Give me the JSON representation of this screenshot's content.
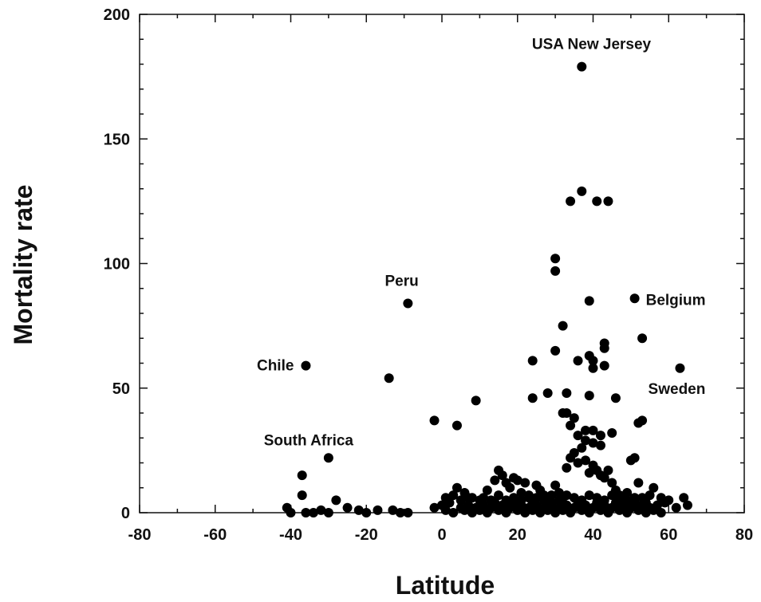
{
  "chart_data": {
    "type": "scatter",
    "title": "",
    "xlabel": "Latitude",
    "ylabel": "Mortality rate",
    "xlim": [
      -80,
      80
    ],
    "ylim": [
      0,
      200
    ],
    "xticks": [
      -80,
      -60,
      -40,
      -20,
      0,
      20,
      40,
      60,
      80
    ],
    "yticks": [
      0,
      50,
      100,
      150,
      200
    ],
    "grid": false,
    "legend": "none",
    "point_color": "#000000",
    "annotations": [
      {
        "text": "USA New Jersey",
        "x": 40,
        "y": 179
      },
      {
        "text": "Peru",
        "x": -10,
        "y": 84
      },
      {
        "text": "Belgium",
        "x": 51,
        "y": 86
      },
      {
        "text": "Chile",
        "x": -36,
        "y": 59
      },
      {
        "text": "Sweden",
        "x": 63,
        "y": 58
      },
      {
        "text": "South Africa",
        "x": -30,
        "y": 22
      }
    ],
    "points": [
      [
        37,
        179
      ],
      [
        37,
        129
      ],
      [
        34,
        125
      ],
      [
        41,
        125
      ],
      [
        44,
        125
      ],
      [
        30,
        102
      ],
      [
        30,
        97
      ],
      [
        39,
        85
      ],
      [
        51,
        86
      ],
      [
        -9,
        84
      ],
      [
        32,
        75
      ],
      [
        53,
        70
      ],
      [
        43,
        68
      ],
      [
        43,
        66
      ],
      [
        39,
        63
      ],
      [
        40,
        61
      ],
      [
        36,
        61
      ],
      [
        24,
        61
      ],
      [
        30,
        65
      ],
      [
        43,
        59
      ],
      [
        40,
        58
      ],
      [
        -36,
        59
      ],
      [
        -14,
        54
      ],
      [
        63,
        58
      ],
      [
        28,
        48
      ],
      [
        33,
        48
      ],
      [
        39,
        47
      ],
      [
        46,
        46
      ],
      [
        24,
        46
      ],
      [
        9,
        45
      ],
      [
        -2,
        37
      ],
      [
        4,
        35
      ],
      [
        33,
        40
      ],
      [
        32,
        40
      ],
      [
        35,
        38
      ],
      [
        52,
        36
      ],
      [
        53,
        37
      ],
      [
        34,
        35
      ],
      [
        38,
        33
      ],
      [
        40,
        33
      ],
      [
        36,
        31
      ],
      [
        42,
        31
      ],
      [
        45,
        32
      ],
      [
        38,
        29
      ],
      [
        40,
        28
      ],
      [
        42,
        27
      ],
      [
        -30,
        22
      ],
      [
        -37,
        15
      ],
      [
        -37,
        7
      ],
      [
        -41,
        2
      ],
      [
        -40,
        0
      ],
      [
        -36,
        0
      ],
      [
        -34,
        0
      ],
      [
        -32,
        1
      ],
      [
        -30,
        0
      ],
      [
        -28,
        5
      ],
      [
        -25,
        2
      ],
      [
        -22,
        1
      ],
      [
        -20,
        0
      ],
      [
        -17,
        1
      ],
      [
        -13,
        1
      ],
      [
        -11,
        0
      ],
      [
        -9,
        0
      ],
      [
        4,
        10
      ],
      [
        6,
        8
      ],
      [
        8,
        6
      ],
      [
        10,
        5
      ],
      [
        12,
        9
      ],
      [
        14,
        13
      ],
      [
        15,
        17
      ],
      [
        16,
        15
      ],
      [
        17,
        12
      ],
      [
        18,
        10
      ],
      [
        19,
        14
      ],
      [
        20,
        13
      ],
      [
        21,
        8
      ],
      [
        22,
        12
      ],
      [
        23,
        6
      ],
      [
        24,
        4
      ],
      [
        25,
        11
      ],
      [
        26,
        9
      ],
      [
        27,
        7
      ],
      [
        28,
        5
      ],
      [
        29,
        3
      ],
      [
        30,
        11
      ],
      [
        31,
        8
      ],
      [
        32,
        6
      ],
      [
        33,
        18
      ],
      [
        34,
        22
      ],
      [
        35,
        24
      ],
      [
        36,
        20
      ],
      [
        37,
        26
      ],
      [
        38,
        21
      ],
      [
        39,
        16
      ],
      [
        40,
        19
      ],
      [
        41,
        17
      ],
      [
        42,
        15
      ],
      [
        43,
        14
      ],
      [
        44,
        17
      ],
      [
        45,
        12
      ],
      [
        46,
        9
      ],
      [
        47,
        7
      ],
      [
        48,
        5
      ],
      [
        49,
        8
      ],
      [
        50,
        21
      ],
      [
        51,
        22
      ],
      [
        52,
        12
      ],
      [
        53,
        6
      ],
      [
        54,
        4
      ],
      [
        55,
        7
      ],
      [
        56,
        10
      ],
      [
        57,
        3
      ],
      [
        58,
        6
      ],
      [
        59,
        4
      ],
      [
        60,
        5
      ],
      [
        62,
        2
      ],
      [
        64,
        6
      ],
      [
        65,
        3
      ],
      [
        -2,
        2
      ],
      [
        0,
        3
      ],
      [
        1,
        1
      ],
      [
        2,
        4
      ],
      [
        3,
        0
      ],
      [
        5,
        2
      ],
      [
        6,
        1
      ],
      [
        7,
        3
      ],
      [
        8,
        0
      ],
      [
        9,
        2
      ],
      [
        10,
        1
      ],
      [
        11,
        3
      ],
      [
        12,
        0
      ],
      [
        13,
        2
      ],
      [
        14,
        4
      ],
      [
        15,
        1
      ],
      [
        16,
        3
      ],
      [
        17,
        0
      ],
      [
        18,
        2
      ],
      [
        19,
        4
      ],
      [
        20,
        1
      ],
      [
        21,
        3
      ],
      [
        22,
        0
      ],
      [
        23,
        2
      ],
      [
        24,
        1
      ],
      [
        25,
        3
      ],
      [
        26,
        0
      ],
      [
        27,
        2
      ],
      [
        28,
        1
      ],
      [
        29,
        4
      ],
      [
        30,
        0
      ],
      [
        31,
        2
      ],
      [
        32,
        1
      ],
      [
        33,
        3
      ],
      [
        34,
        0
      ],
      [
        35,
        2
      ],
      [
        36,
        4
      ],
      [
        37,
        1
      ],
      [
        38,
        3
      ],
      [
        39,
        0
      ],
      [
        40,
        2
      ],
      [
        41,
        4
      ],
      [
        42,
        1
      ],
      [
        43,
        3
      ],
      [
        44,
        0
      ],
      [
        45,
        2
      ],
      [
        46,
        4
      ],
      [
        47,
        1
      ],
      [
        48,
        3
      ],
      [
        49,
        0
      ],
      [
        50,
        2
      ],
      [
        51,
        4
      ],
      [
        52,
        1
      ],
      [
        53,
        3
      ],
      [
        54,
        0
      ],
      [
        55,
        2
      ],
      [
        56,
        1
      ],
      [
        58,
        0
      ],
      [
        1,
        6
      ],
      [
        3,
        7
      ],
      [
        5,
        5
      ],
      [
        7,
        6
      ],
      [
        11,
        6
      ],
      [
        13,
        5
      ],
      [
        15,
        7
      ],
      [
        17,
        5
      ],
      [
        19,
        6
      ],
      [
        21,
        5
      ],
      [
        23,
        7
      ],
      [
        25,
        6
      ],
      [
        27,
        5
      ],
      [
        29,
        7
      ],
      [
        31,
        5
      ],
      [
        33,
        7
      ],
      [
        35,
        6
      ],
      [
        37,
        5
      ],
      [
        39,
        7
      ],
      [
        41,
        6
      ],
      [
        43,
        5
      ],
      [
        45,
        7
      ],
      [
        47,
        6
      ],
      [
        49,
        5
      ],
      [
        51,
        6
      ]
    ]
  }
}
